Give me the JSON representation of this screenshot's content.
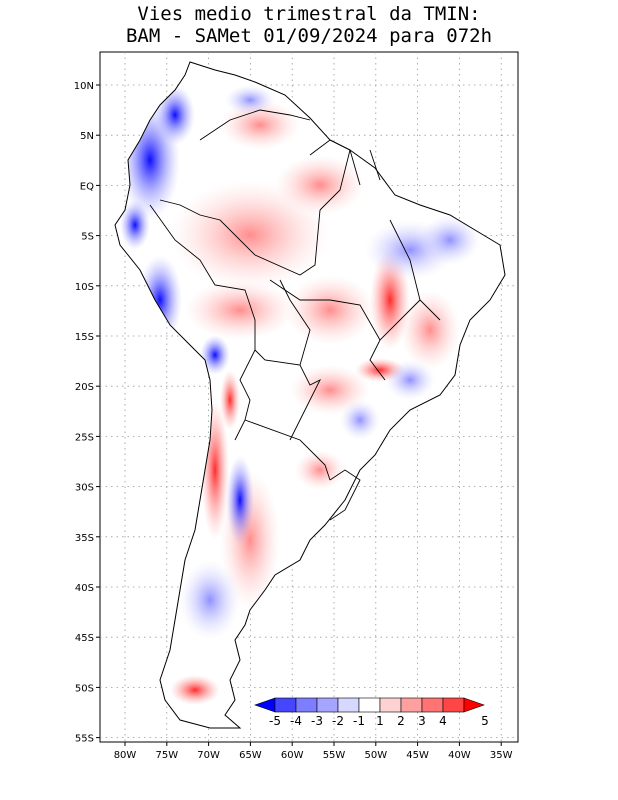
{
  "title": {
    "line1": "Vies medio trimestral da TMIN:",
    "line2": "BAM - SAMet 01/09/2024  para 072h"
  },
  "axes": {
    "lat_labels": [
      "10N",
      "5N",
      "EQ",
      "5S",
      "10S",
      "15S",
      "20S",
      "25S",
      "30S",
      "35S",
      "40S",
      "45S",
      "50S",
      "55S"
    ],
    "lon_labels": [
      "80W",
      "75W",
      "70W",
      "65W",
      "60W",
      "55W",
      "50W",
      "45W",
      "40W",
      "35W"
    ]
  },
  "colorbar": {
    "labels": [
      "-5",
      "-4",
      "-3",
      "-2",
      "-1",
      "1",
      "2",
      "3",
      "4",
      "5"
    ],
    "colors": [
      "#0000ff",
      "#4646ff",
      "#7d7dff",
      "#a5a5ff",
      "#d7d7ff",
      "#ffffff",
      "#ffd2d2",
      "#ffa0a0",
      "#ff7373",
      "#ff4646",
      "#ff0000"
    ]
  },
  "map_data": {
    "region": "South America",
    "lon_range": [
      -82,
      -34
    ],
    "lat_range": [
      13,
      -56
    ],
    "grid": "dotted"
  }
}
